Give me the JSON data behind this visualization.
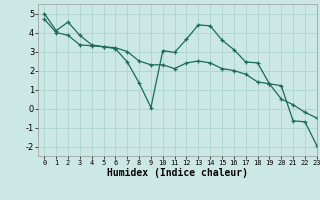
{
  "title": "",
  "xlabel": "Humidex (Indice chaleur)",
  "background_color": "#cce8e4",
  "grid_color": "#b0d8d0",
  "line_color": "#1a6b5a",
  "xlim": [
    -0.5,
    23
  ],
  "ylim": [
    -2.5,
    5.5
  ],
  "xticks": [
    0,
    1,
    2,
    3,
    4,
    5,
    6,
    7,
    8,
    9,
    10,
    11,
    12,
    13,
    14,
    15,
    16,
    17,
    18,
    19,
    20,
    21,
    22,
    23
  ],
  "yticks": [
    -2,
    -1,
    0,
    1,
    2,
    3,
    4,
    5
  ],
  "line1_x": [
    0,
    1,
    2,
    3,
    4,
    5,
    6,
    7,
    8,
    9,
    10,
    11,
    12,
    13,
    14,
    15,
    16,
    17,
    18,
    19,
    20,
    21,
    22,
    23
  ],
  "line1_y": [
    5.0,
    4.1,
    4.55,
    3.85,
    3.35,
    3.25,
    3.15,
    2.45,
    1.35,
    0.05,
    3.05,
    2.95,
    3.65,
    4.4,
    4.35,
    3.6,
    3.1,
    2.45,
    2.4,
    1.3,
    1.2,
    -0.65,
    -0.7,
    -1.95
  ],
  "line2_x": [
    0,
    1,
    2,
    3,
    4,
    5,
    6,
    7,
    8,
    9,
    10,
    11,
    12,
    13,
    14,
    15,
    16,
    17,
    18,
    19,
    20,
    21,
    22,
    23
  ],
  "line2_y": [
    4.7,
    4.0,
    3.85,
    3.35,
    3.3,
    3.25,
    3.2,
    3.0,
    2.5,
    2.3,
    2.3,
    2.1,
    2.4,
    2.5,
    2.4,
    2.1,
    2.0,
    1.8,
    1.4,
    1.3,
    0.5,
    0.2,
    -0.2,
    -0.5
  ]
}
